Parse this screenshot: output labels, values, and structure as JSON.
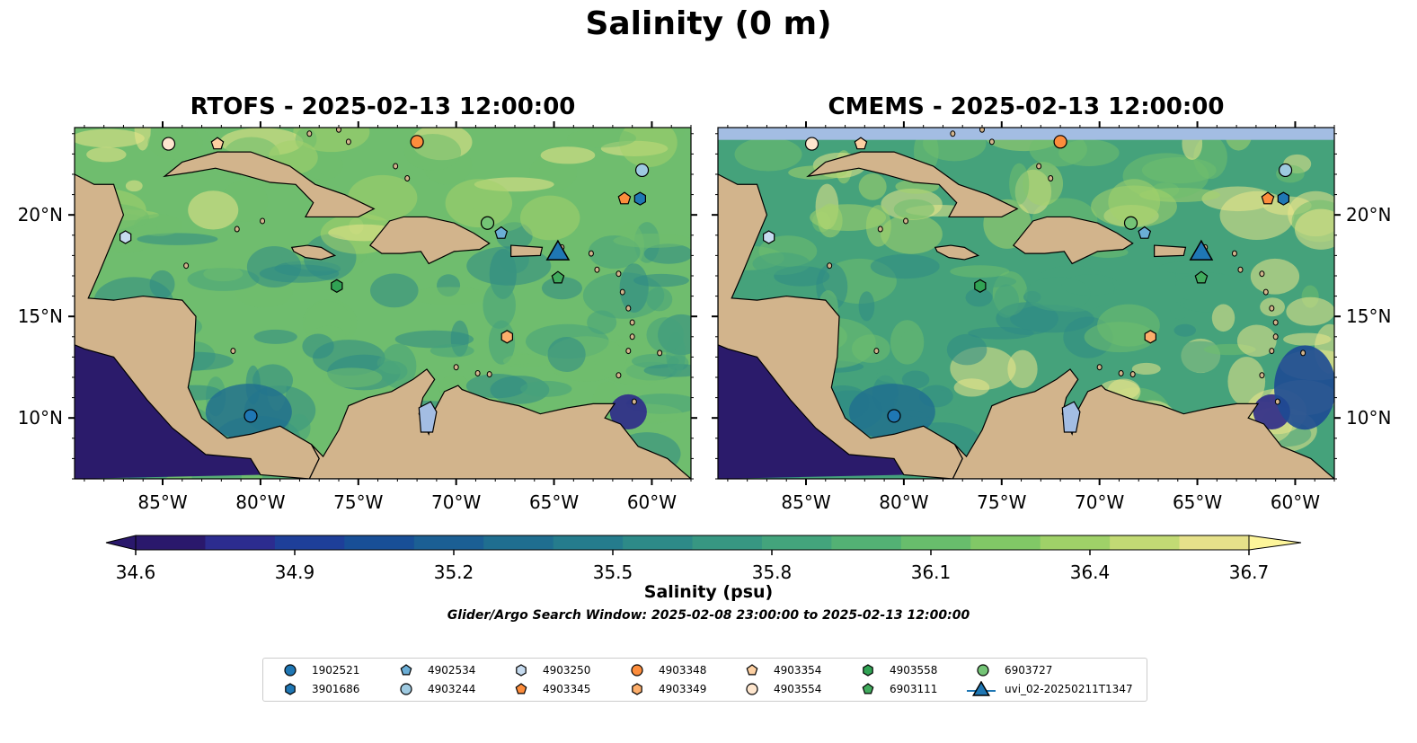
{
  "suptitle": "Salinity (0 m)",
  "panels": [
    {
      "id": "rtofs",
      "title": "RTOFS - 2025-02-13 12:00:00"
    },
    {
      "id": "cmems",
      "title": "CMEMS - 2025-02-13 12:00:00"
    }
  ],
  "map": {
    "lon_range": [
      -89.5,
      -58.0
    ],
    "lat_range": [
      7.0,
      24.3
    ],
    "lon_ticks": [
      "85°W",
      "80°W",
      "75°W",
      "70°W",
      "65°W",
      "60°W"
    ],
    "lat_ticks": [
      "20°N",
      "15°N",
      "10°N"
    ],
    "ocean_sequential_palette": [
      "#2b1b6b",
      "#2e2a8a",
      "#1d4a94",
      "#1f6e8e",
      "#2e8a85",
      "#45a27b",
      "#6fbd6e",
      "#a4d16c",
      "#e9e68a"
    ],
    "land_color": "#d2b48c",
    "water_lake_color": "#a3bde3"
  },
  "colorbar": {
    "label": "Salinity (psu)",
    "ticks": [
      "34.6",
      "34.9",
      "35.2",
      "35.5",
      "35.8",
      "36.1",
      "36.4",
      "36.7"
    ],
    "min": 34.6,
    "max": 36.7,
    "colors": [
      "#2a186c",
      "#2c2c8f",
      "#1e3f99",
      "#184f97",
      "#1b5f94",
      "#1f6e90",
      "#257c8d",
      "#2d8a88",
      "#379782",
      "#43a47c",
      "#53b174",
      "#68bd6c",
      "#81c866",
      "#9fd168",
      "#c2da74",
      "#e6e18a"
    ],
    "extend_left": "#2a186c",
    "extend_right": "#fdf59a"
  },
  "subtitle": "Glider/Argo Search Window: 2025-02-08 23:00:00 to 2025-02-13 12:00:00",
  "floats": [
    {
      "id": "1902521",
      "marker": "circle",
      "color": "#1f77b4",
      "lon": -80.5,
      "lat": 10.1
    },
    {
      "id": "3901686",
      "marker": "hexagon",
      "color": "#1f77b4",
      "lon": -60.6,
      "lat": 20.8
    },
    {
      "id": "4902534",
      "marker": "pentagon",
      "color": "#6baed6",
      "lon": -67.7,
      "lat": 19.1
    },
    {
      "id": "4903244",
      "marker": "circle",
      "color": "#9ecae1",
      "lon": -60.5,
      "lat": 22.2
    },
    {
      "id": "4903250",
      "marker": "hexagon",
      "color": "#c6dbef",
      "lon": -86.9,
      "lat": 18.9
    },
    {
      "id": "4903345",
      "marker": "pentagon",
      "color": "#fd8d3c",
      "lon": -61.4,
      "lat": 20.8
    },
    {
      "id": "4903348",
      "marker": "circle",
      "color": "#fd8d3c",
      "lon": -72.0,
      "lat": 23.6
    },
    {
      "id": "4903349",
      "marker": "hexagon",
      "color": "#fdae6b",
      "lon": -67.4,
      "lat": 14.0
    },
    {
      "id": "4903354",
      "marker": "pentagon",
      "color": "#fdd0a2",
      "lon": -82.2,
      "lat": 23.5
    },
    {
      "id": "4903554",
      "marker": "circle",
      "color": "#fee6ce",
      "lon": -84.7,
      "lat": 23.5
    },
    {
      "id": "4903558",
      "marker": "hexagon",
      "color": "#31a354",
      "lon": -76.1,
      "lat": 16.5
    },
    {
      "id": "6903111",
      "marker": "pentagon",
      "color": "#41ab5d",
      "lon": -64.8,
      "lat": 16.9
    },
    {
      "id": "6903727",
      "marker": "circle",
      "color": "#74c476",
      "lon": -68.4,
      "lat": 19.6
    },
    {
      "id": "uvi_02-20250211T1347",
      "marker": "triangle",
      "color": "#1f77b4",
      "lon": -64.8,
      "lat": 18.1
    }
  ]
}
